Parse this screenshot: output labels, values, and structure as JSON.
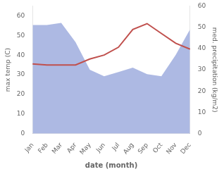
{
  "chart_data": {
    "type": "line",
    "xlabel": "date (month)",
    "ylabel": "max temp (C)",
    "y2label": "med. precipitation (kg/m2)",
    "categories": [
      "Jan",
      "Feb",
      "Mar",
      "Apr",
      "May",
      "Jun",
      "Jul",
      "Aug",
      "Sep",
      "Oct",
      "Nov",
      "Dec"
    ],
    "series": [
      {
        "type": "area",
        "axis": "y2",
        "color": "#adb9e3",
        "values": [
          51,
          51,
          52,
          43,
          30,
          27,
          29,
          31,
          28,
          27,
          37,
          49
        ]
      },
      {
        "type": "line",
        "color": "#c0504d",
        "values": [
          35.5,
          35,
          35,
          35,
          38,
          40,
          44,
          53,
          56,
          51,
          46,
          43
        ]
      }
    ],
    "ylim": [
      0,
      65
    ],
    "yticks": [
      0,
      10,
      20,
      30,
      40,
      50,
      60
    ],
    "y2lim": [
      0,
      60
    ],
    "y2ticks": [
      0,
      10,
      20,
      30,
      40,
      50,
      60
    ],
    "grid": false
  }
}
